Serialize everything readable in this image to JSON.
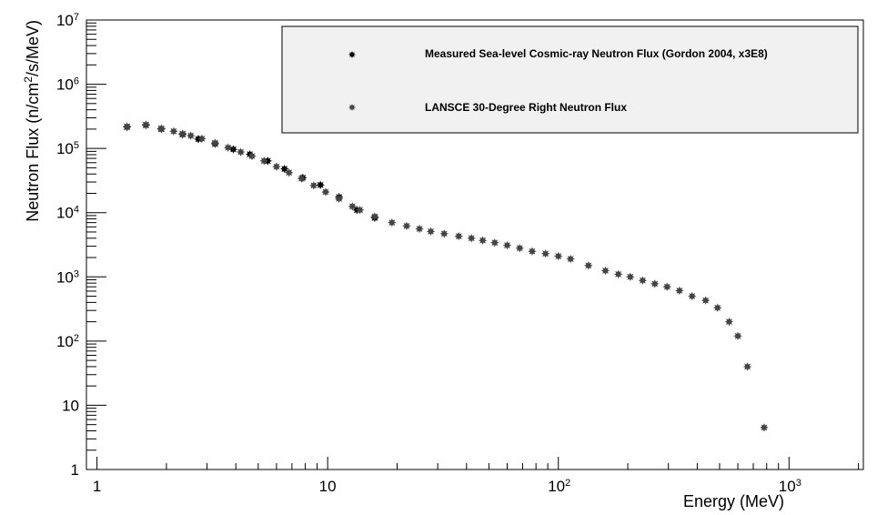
{
  "chart_data": {
    "type": "scatter",
    "title": "",
    "xlabel": "Energy (MeV)",
    "ylabel_parts": [
      "Neutron Flux (n/cm",
      "2",
      "/s/MeV)"
    ],
    "xlim": [
      0.9,
      2100
    ],
    "ylim": [
      1,
      10000000
    ],
    "xscale": "log",
    "yscale": "log",
    "grid": false,
    "legend_position": "top-right",
    "x_ticks": [
      {
        "value": 1,
        "base": "1",
        "exp": ""
      },
      {
        "value": 10,
        "base": "10",
        "exp": ""
      },
      {
        "value": 100,
        "base": "10",
        "exp": "2"
      },
      {
        "value": 1000,
        "base": "10",
        "exp": "3"
      }
    ],
    "y_ticks": [
      {
        "value": 1,
        "base": "1",
        "exp": ""
      },
      {
        "value": 10,
        "base": "10",
        "exp": ""
      },
      {
        "value": 100,
        "base": "10",
        "exp": "2"
      },
      {
        "value": 1000,
        "base": "10",
        "exp": "3"
      },
      {
        "value": 10000,
        "base": "10",
        "exp": "4"
      },
      {
        "value": 100000,
        "base": "10",
        "exp": "5"
      },
      {
        "value": 1000000,
        "base": "10",
        "exp": "6"
      },
      {
        "value": 10000000,
        "base": "10",
        "exp": "7"
      }
    ],
    "series": [
      {
        "name": "Measured Sea-level Cosmic-ray Neutron Flux (Gordon 2004, x3E8)",
        "color": "#000000",
        "marker": "star",
        "x": [
          1.35,
          1.63,
          1.9,
          2.35,
          2.75,
          3.25,
          3.9,
          4.6,
          5.5,
          6.5,
          7.8,
          9.3,
          11.2,
          13.4,
          16.0
        ],
        "y": [
          215000,
          230000,
          200000,
          165000,
          140000,
          118000,
          97000,
          81000,
          64000,
          48000,
          35000,
          27000,
          17500,
          11000,
          8300
        ]
      },
      {
        "name": "LANSCE 30-Degree Right Neutron Flux",
        "color": "#444444",
        "marker": "star",
        "x": [
          1.35,
          1.63,
          1.9,
          2.15,
          2.35,
          2.55,
          2.85,
          3.25,
          3.7,
          4.2,
          4.7,
          5.3,
          6.0,
          6.8,
          7.7,
          8.7,
          9.8,
          11.2,
          12.8,
          13.8,
          16.0,
          19.0,
          22.0,
          25.0,
          28.0,
          32.0,
          37.0,
          42.0,
          47.0,
          53.0,
          60.0,
          68.0,
          77.0,
          88.0,
          100.0,
          113.0,
          135.0,
          160.0,
          182.0,
          205.0,
          232.0,
          262.0,
          296.0,
          335.0,
          380.0,
          435.0,
          490.0,
          550.0,
          600.0,
          660.0,
          780.0
        ],
        "y": [
          220000,
          235000,
          205000,
          185000,
          170000,
          158000,
          142000,
          122000,
          103000,
          88000,
          76000,
          64000,
          52000,
          42000,
          34000,
          26500,
          21000,
          16500,
          12500,
          11000,
          8700,
          7000,
          6200,
          5600,
          5100,
          4700,
          4300,
          4000,
          3700,
          3400,
          3100,
          2800,
          2500,
          2300,
          2100,
          1900,
          1500,
          1250,
          1100,
          1000,
          880,
          780,
          700,
          610,
          500,
          430,
          330,
          200,
          120,
          40,
          4.5
        ]
      }
    ]
  }
}
